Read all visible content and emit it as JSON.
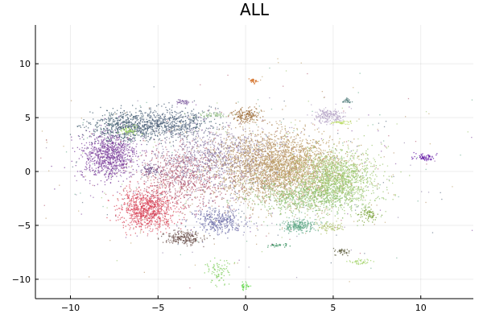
{
  "chart_data": {
    "type": "scatter",
    "title": "ALL",
    "xlabel": "",
    "ylabel": "",
    "xlim": [
      -12,
      13
    ],
    "ylim": [
      -11.8,
      13.6
    ],
    "grid": true,
    "legend": "none",
    "xticks": [
      -10,
      -5,
      0,
      5,
      10
    ],
    "yticks": [
      -10,
      -5,
      0,
      5,
      10
    ],
    "clusters": [
      {
        "cx": -7.8,
        "cy": 1.5,
        "sx": 0.8,
        "sy": 1.1,
        "n": 900,
        "color": "#7b3f9b"
      },
      {
        "cx": -7.0,
        "cy": 4.2,
        "sx": 1.0,
        "sy": 0.7,
        "n": 500,
        "color": "#3f5b6e"
      },
      {
        "cx": -4.6,
        "cy": 4.5,
        "sx": 1.3,
        "sy": 0.7,
        "n": 700,
        "color": "#4b5f78"
      },
      {
        "cx": -5.6,
        "cy": -3.4,
        "sx": 0.8,
        "sy": 0.9,
        "n": 900,
        "color": "#d8455a"
      },
      {
        "cx": -3.6,
        "cy": -0.6,
        "sx": 1.2,
        "sy": 1.4,
        "n": 700,
        "color": "#b2566c"
      },
      {
        "cx": -1.9,
        "cy": 1.3,
        "sx": 1.6,
        "sy": 1.4,
        "n": 800,
        "color": "#8b7aa4"
      },
      {
        "cx": -1.6,
        "cy": -4.6,
        "sx": 0.7,
        "sy": 0.6,
        "n": 350,
        "color": "#6c6da8"
      },
      {
        "cx": -3.5,
        "cy": -6.1,
        "sx": 0.6,
        "sy": 0.3,
        "n": 220,
        "color": "#6a4f4a"
      },
      {
        "cx": 1.0,
        "cy": 0.6,
        "sx": 1.5,
        "sy": 1.6,
        "n": 1500,
        "color": "#b08a5c"
      },
      {
        "cx": 2.8,
        "cy": 0.2,
        "sx": 1.5,
        "sy": 1.5,
        "n": 1400,
        "color": "#bc9d62"
      },
      {
        "cx": 5.2,
        "cy": -0.6,
        "sx": 1.1,
        "sy": 1.3,
        "n": 1200,
        "color": "#9bc56b"
      },
      {
        "cx": 3.5,
        "cy": -2.4,
        "sx": 1.6,
        "sy": 0.8,
        "n": 700,
        "color": "#8cc070"
      },
      {
        "cx": 3.0,
        "cy": -5.0,
        "sx": 0.5,
        "sy": 0.3,
        "n": 220,
        "color": "#5fa786"
      },
      {
        "cx": 4.7,
        "cy": 5.2,
        "sx": 0.4,
        "sy": 0.35,
        "n": 200,
        "color": "#b6a4c6"
      },
      {
        "cx": 0.0,
        "cy": 5.2,
        "sx": 0.45,
        "sy": 0.35,
        "n": 160,
        "color": "#9c6b35"
      },
      {
        "cx": 0.4,
        "cy": 8.4,
        "sx": 0.12,
        "sy": 0.12,
        "n": 30,
        "color": "#d2691e"
      },
      {
        "cx": 5.8,
        "cy": 6.6,
        "sx": 0.18,
        "sy": 0.1,
        "n": 30,
        "color": "#4d7a78"
      },
      {
        "cx": 10.2,
        "cy": 1.4,
        "sx": 0.3,
        "sy": 0.15,
        "n": 60,
        "color": "#5a0aa0"
      },
      {
        "cx": 7.0,
        "cy": -4.0,
        "sx": 0.3,
        "sy": 0.3,
        "n": 70,
        "color": "#6f9b2a"
      },
      {
        "cx": 4.8,
        "cy": -5.1,
        "sx": 0.4,
        "sy": 0.25,
        "n": 80,
        "color": "#b0c36f"
      },
      {
        "cx": 5.5,
        "cy": -7.4,
        "sx": 0.25,
        "sy": 0.15,
        "n": 40,
        "color": "#5b5b3b"
      },
      {
        "cx": 6.4,
        "cy": -8.3,
        "sx": 0.4,
        "sy": 0.12,
        "n": 40,
        "color": "#a0d264"
      },
      {
        "cx": -1.6,
        "cy": -9.2,
        "sx": 0.3,
        "sy": 0.6,
        "n": 80,
        "color": "#7acb55"
      },
      {
        "cx": -0.1,
        "cy": -10.6,
        "sx": 0.12,
        "sy": 0.2,
        "n": 30,
        "color": "#5ad642"
      },
      {
        "cx": -6.7,
        "cy": 3.9,
        "sx": 0.25,
        "sy": 0.2,
        "n": 50,
        "color": "#a6e05c"
      },
      {
        "cx": -3.6,
        "cy": 6.5,
        "sx": 0.25,
        "sy": 0.12,
        "n": 40,
        "color": "#7c5a9e"
      },
      {
        "cx": 5.4,
        "cy": 4.6,
        "sx": 0.3,
        "sy": 0.1,
        "n": 40,
        "color": "#b7d95c"
      },
      {
        "cx": -2.0,
        "cy": 5.3,
        "sx": 0.5,
        "sy": 0.12,
        "n": 50,
        "color": "#8fbd7e"
      },
      {
        "cx": 1.8,
        "cy": -6.8,
        "sx": 0.3,
        "sy": 0.1,
        "n": 30,
        "color": "#2e8b57"
      },
      {
        "cx": -5.4,
        "cy": 0.2,
        "sx": 0.3,
        "sy": 0.2,
        "n": 60,
        "color": "#5b3b7a"
      }
    ],
    "background_noise": {
      "n": 900,
      "spread_x": 5.0,
      "spread_y": 3.6,
      "cx": 0.0,
      "cy": 0.0
    }
  }
}
